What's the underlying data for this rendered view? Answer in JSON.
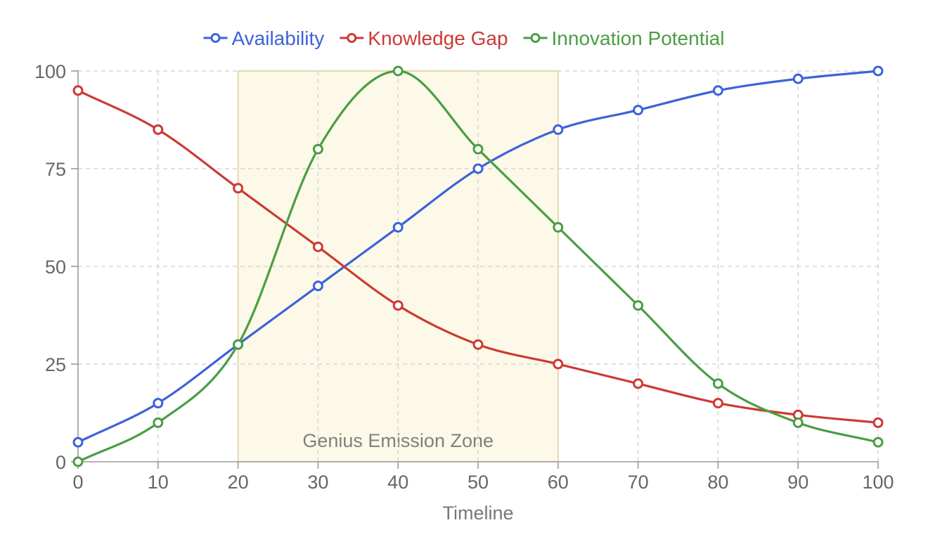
{
  "chart_data": {
    "type": "line",
    "title": "",
    "xlabel": "Timeline",
    "ylabel": "",
    "x": [
      0,
      10,
      20,
      30,
      40,
      50,
      60,
      70,
      80,
      90,
      100
    ],
    "xlim": [
      0,
      100
    ],
    "ylim": [
      0,
      100
    ],
    "x_ticks": [
      "0",
      "10",
      "20",
      "30",
      "40",
      "50",
      "60",
      "70",
      "80",
      "90",
      "100"
    ],
    "y_ticks": [
      "0",
      "25",
      "50",
      "75",
      "100"
    ],
    "grid": true,
    "legend_position": "top",
    "series": [
      {
        "name": "Availability",
        "color": "#3c63d9",
        "values": [
          5,
          15,
          30,
          45,
          60,
          75,
          85,
          90,
          95,
          98,
          100
        ]
      },
      {
        "name": "Knowledge Gap",
        "color": "#cc3a33",
        "values": [
          95,
          85,
          70,
          55,
          40,
          30,
          25,
          20,
          15,
          12,
          10
        ]
      },
      {
        "name": "Innovation Potential",
        "color": "#4a9e43",
        "values": [
          0,
          10,
          30,
          80,
          100,
          80,
          60,
          40,
          20,
          10,
          5
        ]
      }
    ],
    "annotations": [
      {
        "type": "box",
        "label": "Genius Emission Zone",
        "x_range": [
          20,
          60
        ],
        "y_range": [
          0,
          100
        ],
        "fill": "#fcf9e8",
        "border": "#ebcd7c"
      }
    ]
  }
}
